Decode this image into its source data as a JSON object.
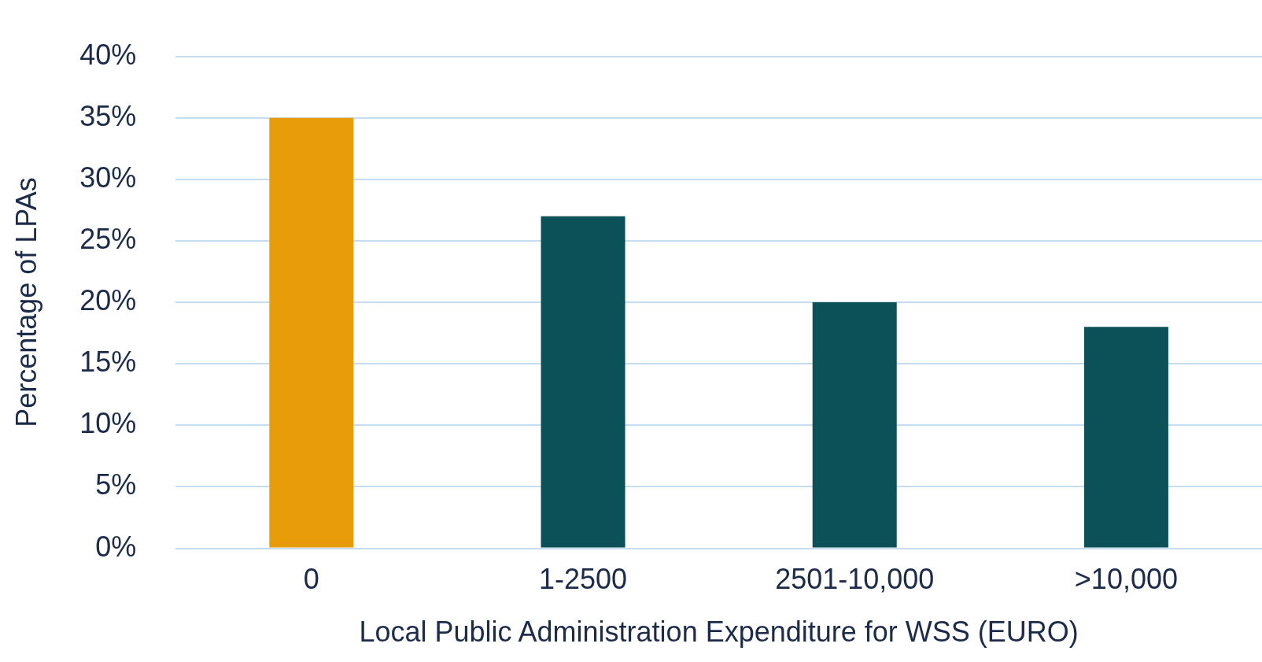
{
  "chart_data": {
    "type": "bar",
    "xlabel": "Local Public Administration Expenditure for WSS (EURO)",
    "ylabel": "Percentage of LPAs",
    "categories": [
      "0",
      "1-2500",
      "2501-10,000",
      ">10,000"
    ],
    "values": [
      35,
      27,
      20,
      18
    ],
    "colors": [
      "#e89c0a",
      "#0c5157",
      "#0c5157",
      "#0c5157"
    ],
    "ylim": [
      0,
      40
    ],
    "yticks": [
      {
        "value": 0,
        "label": "0%"
      },
      {
        "value": 5,
        "label": "5%"
      },
      {
        "value": 10,
        "label": "10%"
      },
      {
        "value": 15,
        "label": "15%"
      },
      {
        "value": 20,
        "label": "20%"
      },
      {
        "value": 25,
        "label": "25%"
      },
      {
        "value": 30,
        "label": "30%"
      },
      {
        "value": 35,
        "label": "35%"
      },
      {
        "value": 40,
        "label": "40%"
      }
    ],
    "grid": "y"
  }
}
